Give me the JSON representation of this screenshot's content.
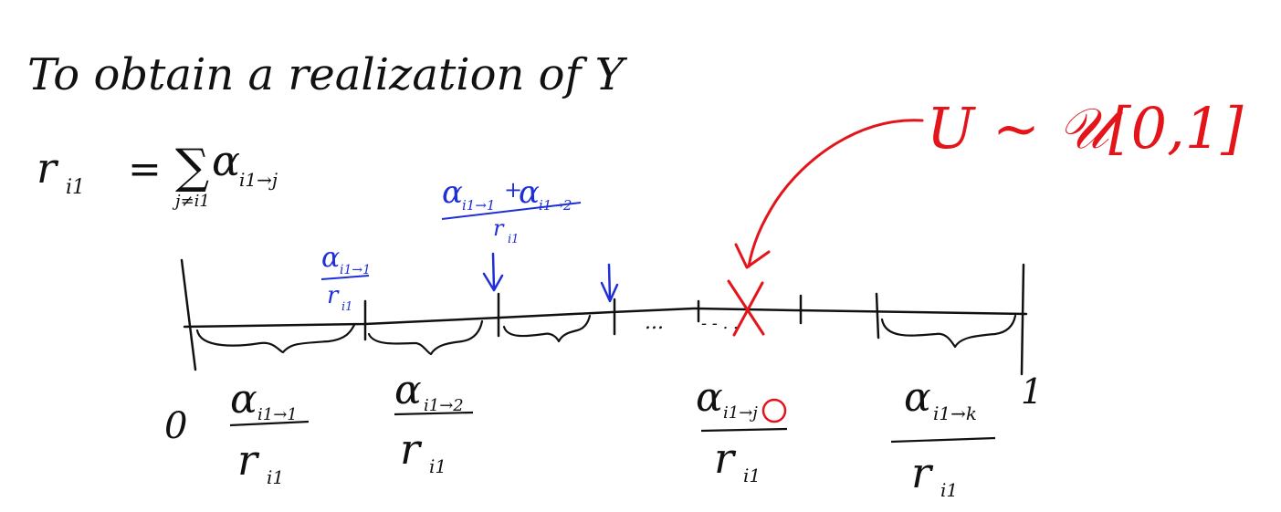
{
  "colors": {
    "black": "#111111",
    "blue": "#1f2fd6",
    "red": "#e3151b"
  },
  "heading": "To obtain a realization of Y",
  "rate_definition": {
    "lhs": "r",
    "lhs_sub": "i1",
    "equals": "=",
    "sum_symbol": "∑",
    "sum_index": "j≠i1",
    "term": "α",
    "term_sub": "i1→j"
  },
  "uniform_note": "U ~ 𝒰[0,1]",
  "axis": {
    "start_label": "0",
    "end_label": "1",
    "dots": "...",
    "dash_dots": "- - . ."
  },
  "blue_labels": [
    {
      "num": "α",
      "num_sub": "i1→1",
      "den": "r",
      "den_sub": "i1"
    },
    {
      "num": "α",
      "num_sub": "i1→1",
      "plus": "+",
      "num2": "α",
      "num2_sub": "i1→2",
      "den": "r",
      "den_sub": "i1"
    }
  ],
  "interval_labels": [
    {
      "num": "α",
      "num_sub": "i1→1",
      "den": "r",
      "den_sub": "i1"
    },
    {
      "num": "α",
      "num_sub": "i1→2",
      "den": "r",
      "den_sub": "i1"
    },
    {
      "num": "α",
      "num_sub": "i1→j",
      "den": "r",
      "den_sub": "i1"
    },
    {
      "num": "α",
      "num_sub": "i1→k",
      "den": "r",
      "den_sub": "i1"
    }
  ]
}
